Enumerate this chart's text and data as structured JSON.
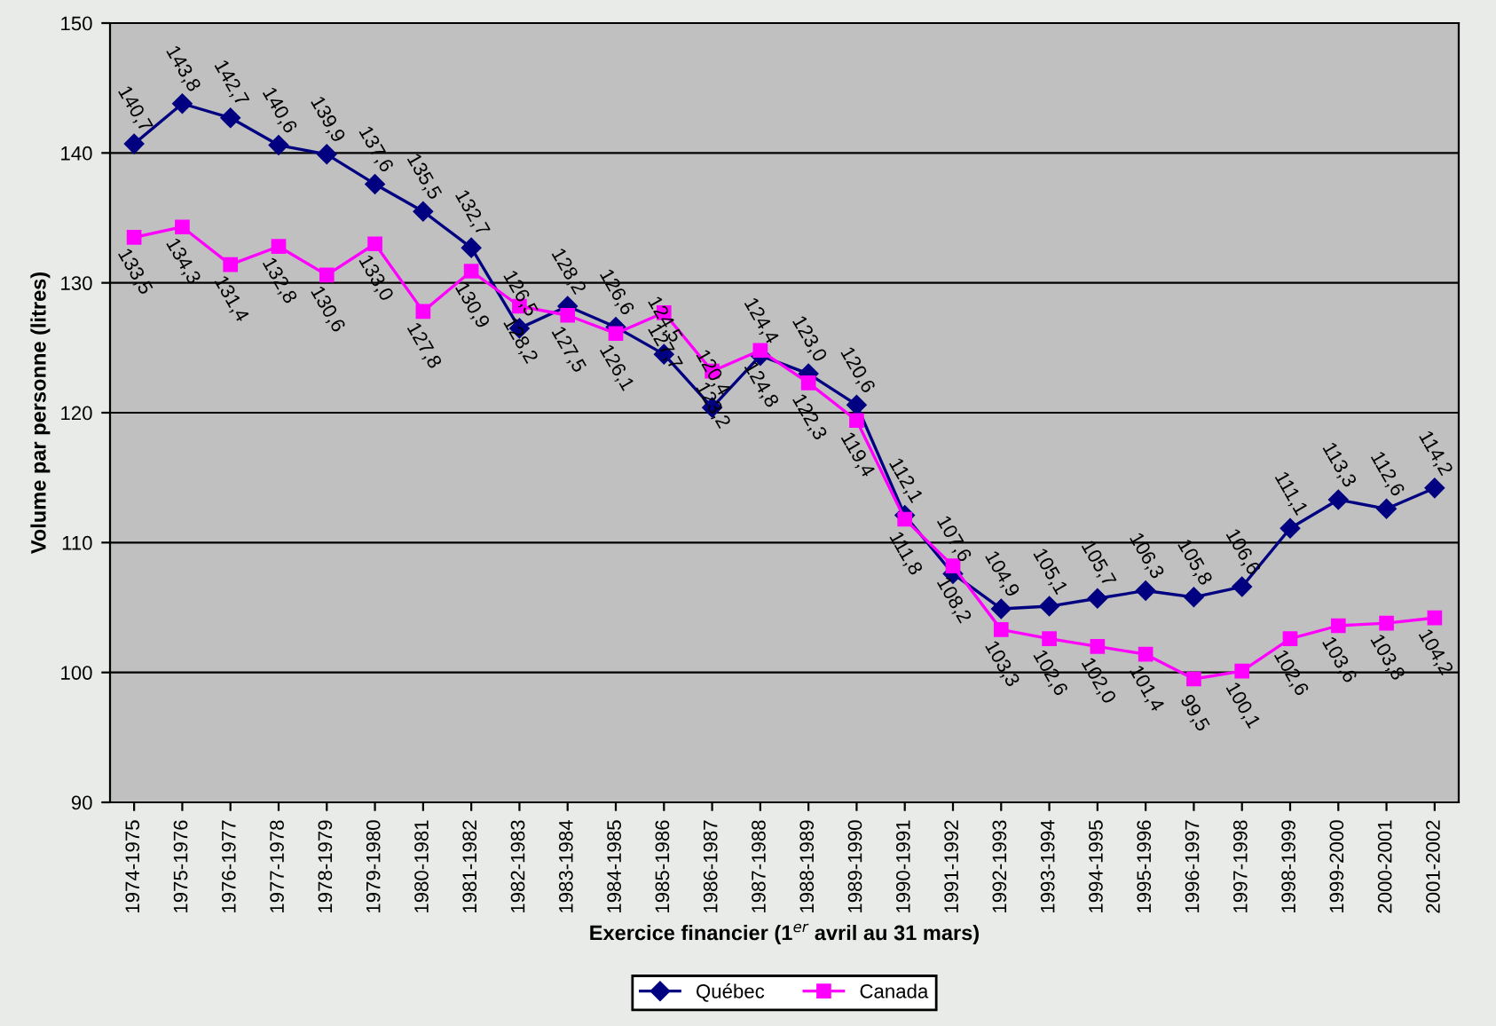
{
  "chart_data": {
    "type": "line",
    "xlabel": "Exercice financier (1$^{er}$ avril au 31 mars)",
    "ylabel": "Volume par personne (litres)",
    "categories": [
      "1974-1975",
      "1975-1976",
      "1976-1977",
      "1977-1978",
      "1978-1979",
      "1979-1980",
      "1980-1981",
      "1981-1982",
      "1982-1983",
      "1983-1984",
      "1984-1985",
      "1985-1986",
      "1986-1987",
      "1987-1988",
      "1988-1989",
      "1989-1990",
      "1990-1991",
      "1991-1992",
      "1992-1993",
      "1993-1994",
      "1994-1995",
      "1995-1996",
      "1996-1997",
      "1997-1998",
      "1998-1999",
      "1999-2000",
      "2000-2001",
      "2001-2002"
    ],
    "series": [
      {
        "name": "Québec",
        "color": "#000080",
        "marker": "diamond",
        "values": [
          140.7,
          143.8,
          142.7,
          140.6,
          139.9,
          137.6,
          135.5,
          132.7,
          126.5,
          128.2,
          126.6,
          124.5,
          120.4,
          124.4,
          123.0,
          120.6,
          112.1,
          107.6,
          104.9,
          105.1,
          105.7,
          106.3,
          105.8,
          106.6,
          111.1,
          113.3,
          112.6,
          114.2
        ],
        "value_labels": [
          "140,7",
          "143,8",
          "142,7",
          "140,6",
          "139,9",
          "137,6",
          "135,5",
          "132,7",
          "126,5",
          "128,2",
          "126,6",
          "124,5",
          "120,4",
          "124,4",
          "123,0",
          "120,6",
          "112,1",
          "107,6",
          "104,9",
          "105,1",
          "105,7",
          "106,3",
          "105,8",
          "106,6",
          "111,1",
          "113,3",
          "112,6",
          "114,2"
        ]
      },
      {
        "name": "Canada",
        "color": "#ff00ff",
        "marker": "square",
        "values": [
          133.5,
          134.3,
          131.4,
          132.8,
          130.6,
          133.0,
          127.8,
          130.9,
          128.2,
          127.5,
          126.1,
          127.7,
          123.2,
          124.8,
          122.3,
          119.4,
          111.8,
          108.2,
          103.3,
          102.6,
          102.0,
          101.4,
          99.5,
          100.1,
          102.6,
          103.6,
          103.8,
          104.2
        ],
        "value_labels": [
          "133,5",
          "134,3",
          "131,4",
          "132,8",
          "130,6",
          "133,0",
          "127,8",
          "130,9",
          "128,2",
          "127,5",
          "126,1",
          "127,7",
          "123,2",
          "124,8",
          "122,3",
          "119,4",
          "111,8",
          "108,2",
          "103,3",
          "102,6",
          "102,0",
          "101,4",
          "99,5",
          "100,1",
          "102,6",
          "103,6",
          "103,8",
          "104,2"
        ]
      }
    ],
    "ylim": [
      90,
      150
    ],
    "yticks": [
      90,
      100,
      110,
      120,
      130,
      140,
      150
    ],
    "grid": "y",
    "legend": "bottom"
  }
}
